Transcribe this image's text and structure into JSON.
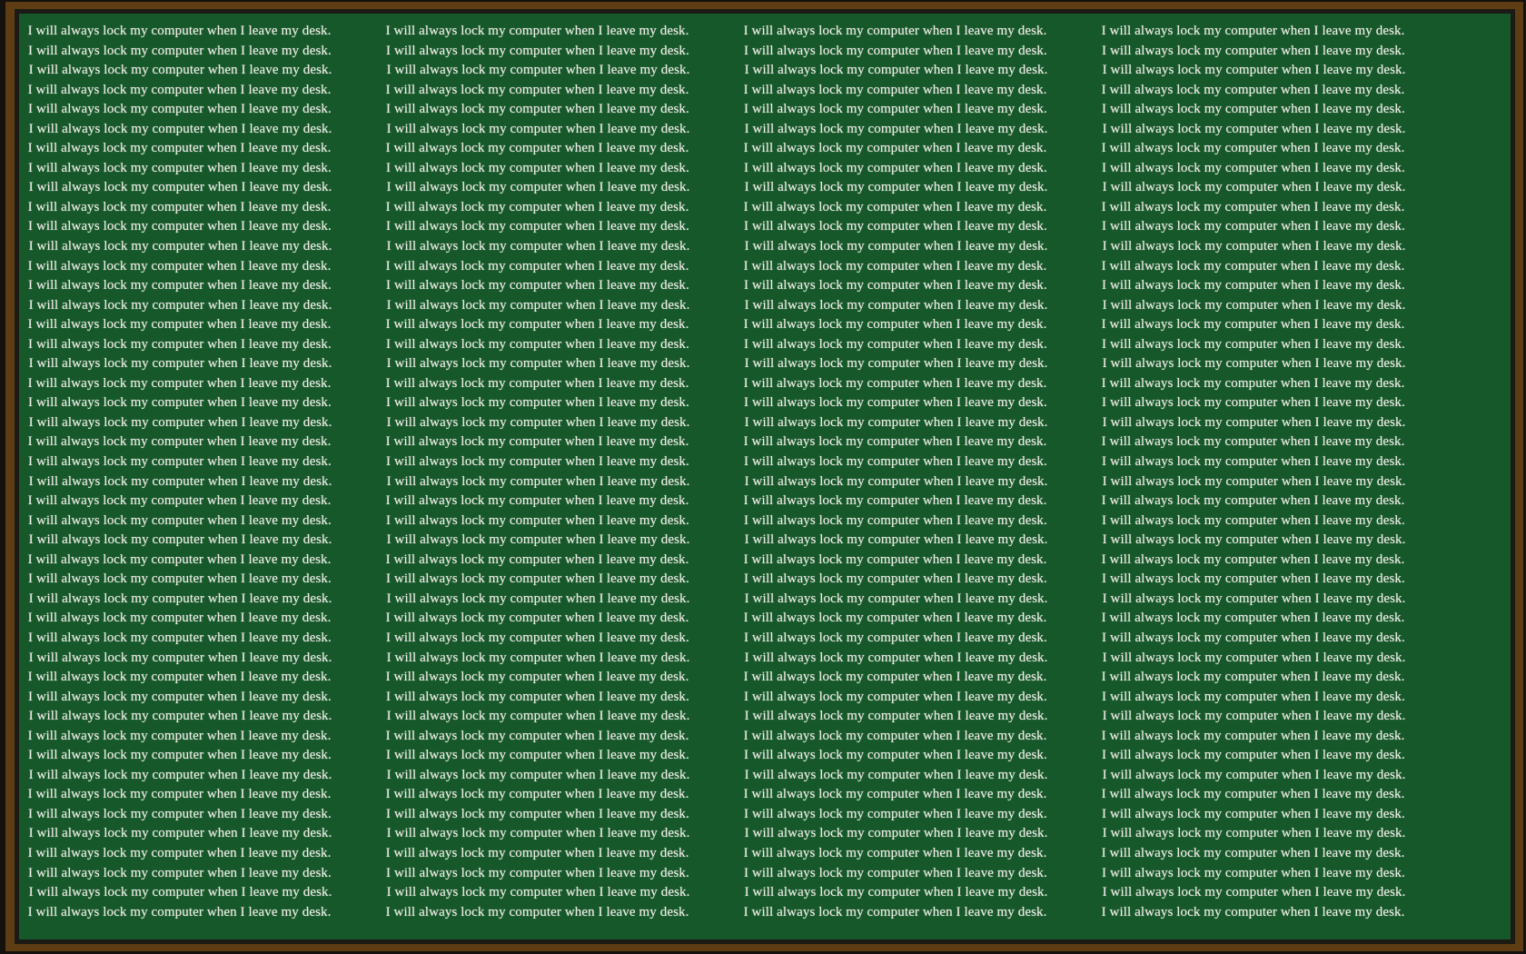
{
  "board": {
    "sentence": "I will always lock my computer when I leave my desk.",
    "columns": 4,
    "rows_per_column": 46,
    "total_lines": 184
  },
  "colors": {
    "board_green": "#16582a",
    "wood_brown": "#5e3d14",
    "outer_black": "#14110e",
    "inner_shadow": "#1c1a14",
    "chalk_white": "#efeee7"
  }
}
